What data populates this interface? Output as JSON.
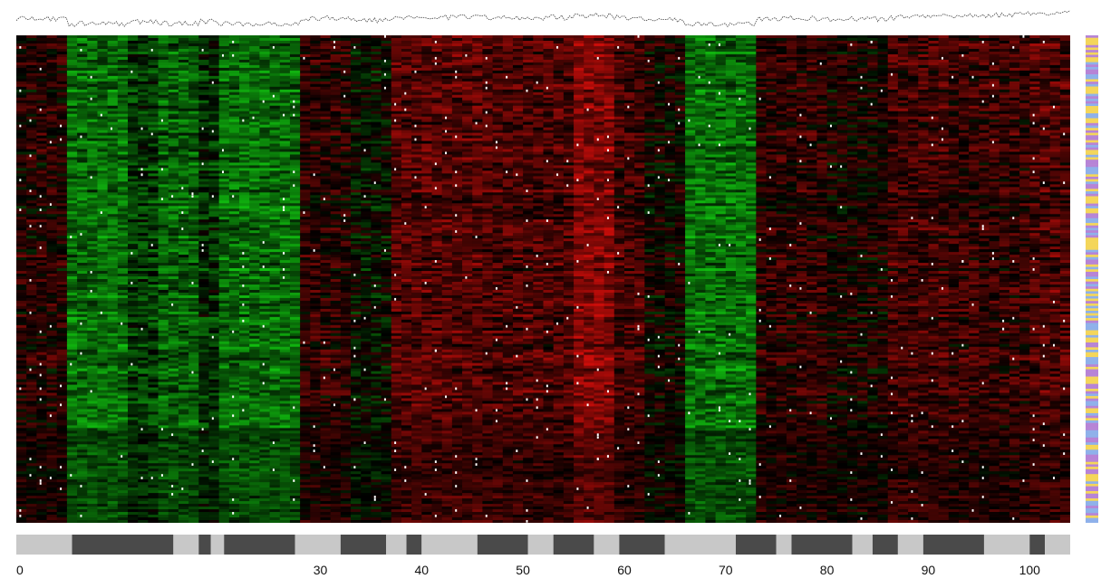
{
  "chart_data": {
    "type": "heatmap",
    "title": "",
    "xlabel": "",
    "ylabel": "",
    "xlim": [
      0,
      104
    ],
    "colors": {
      "high": "#e3241b",
      "low": "#2fd62c",
      "zero": "#000000",
      "missing": "#ffffff"
    },
    "columns": {
      "x_ticks": [
        0,
        10,
        20,
        30,
        40,
        50,
        60,
        70,
        80,
        90,
        100
      ],
      "x_tick_labels": [
        "0",
        "30",
        "40",
        "50",
        "60",
        "70",
        "80",
        "90",
        "100"
      ],
      "label_positions": [
        0,
        30,
        40,
        50,
        60,
        70,
        80,
        90,
        100
      ]
    },
    "column_profile": [
      {
        "from": 0,
        "to": 5,
        "value": 0.15
      },
      {
        "from": 5,
        "to": 11,
        "value": -0.55
      },
      {
        "from": 11,
        "to": 14,
        "value": -0.3
      },
      {
        "from": 14,
        "to": 18,
        "value": -0.5
      },
      {
        "from": 18,
        "to": 20,
        "value": -0.25
      },
      {
        "from": 20,
        "to": 28,
        "value": -0.55
      },
      {
        "from": 28,
        "to": 33,
        "value": 0.2
      },
      {
        "from": 33,
        "to": 37,
        "value": -0.05
      },
      {
        "from": 37,
        "to": 46,
        "value": 0.4
      },
      {
        "from": 46,
        "to": 55,
        "value": 0.35
      },
      {
        "from": 55,
        "to": 59,
        "value": 0.6
      },
      {
        "from": 59,
        "to": 62,
        "value": 0.3
      },
      {
        "from": 62,
        "to": 66,
        "value": 0.05
      },
      {
        "from": 66,
        "to": 73,
        "value": -0.55
      },
      {
        "from": 73,
        "to": 80,
        "value": 0.2
      },
      {
        "from": 80,
        "to": 86,
        "value": 0.1
      },
      {
        "from": 86,
        "to": 92,
        "value": 0.3
      },
      {
        "from": 92,
        "to": 100,
        "value": 0.25
      },
      {
        "from": 100,
        "to": 104,
        "value": 0.35
      }
    ],
    "column_classes": [
      {
        "from": 0,
        "to": 5.5,
        "class": "light"
      },
      {
        "from": 5.5,
        "to": 15.5,
        "class": "dark"
      },
      {
        "from": 15.5,
        "to": 18,
        "class": "light"
      },
      {
        "from": 18,
        "to": 19.2,
        "class": "dark"
      },
      {
        "from": 19.2,
        "to": 20.5,
        "class": "light"
      },
      {
        "from": 20.5,
        "to": 27.5,
        "class": "dark"
      },
      {
        "from": 27.5,
        "to": 32,
        "class": "light"
      },
      {
        "from": 32,
        "to": 36.5,
        "class": "dark"
      },
      {
        "from": 36.5,
        "to": 38.5,
        "class": "light"
      },
      {
        "from": 38.5,
        "to": 40,
        "class": "dark"
      },
      {
        "from": 40,
        "to": 45.5,
        "class": "light"
      },
      {
        "from": 45.5,
        "to": 50.5,
        "class": "dark"
      },
      {
        "from": 50.5,
        "to": 53,
        "class": "light"
      },
      {
        "from": 53,
        "to": 57,
        "class": "dark"
      },
      {
        "from": 57,
        "to": 59.5,
        "class": "light"
      },
      {
        "from": 59.5,
        "to": 64,
        "class": "dark"
      },
      {
        "from": 64,
        "to": 71,
        "class": "light"
      },
      {
        "from": 71,
        "to": 75,
        "class": "dark"
      },
      {
        "from": 75,
        "to": 76.5,
        "class": "light"
      },
      {
        "from": 76.5,
        "to": 82.5,
        "class": "dark"
      },
      {
        "from": 82.5,
        "to": 84.5,
        "class": "light"
      },
      {
        "from": 84.5,
        "to": 87,
        "class": "dark"
      },
      {
        "from": 87,
        "to": 89.5,
        "class": "light"
      },
      {
        "from": 89.5,
        "to": 95.5,
        "class": "dark"
      },
      {
        "from": 95.5,
        "to": 100,
        "class": "light"
      },
      {
        "from": 100,
        "to": 101.5,
        "class": "dark"
      },
      {
        "from": 101.5,
        "to": 104,
        "class": "light"
      }
    ],
    "row_class_colors": [
      "#f4d65a",
      "#b784d6",
      "#8fb1ea"
    ],
    "rows": 180,
    "missing_fraction": 0.03,
    "grid": false,
    "legend": "none"
  }
}
